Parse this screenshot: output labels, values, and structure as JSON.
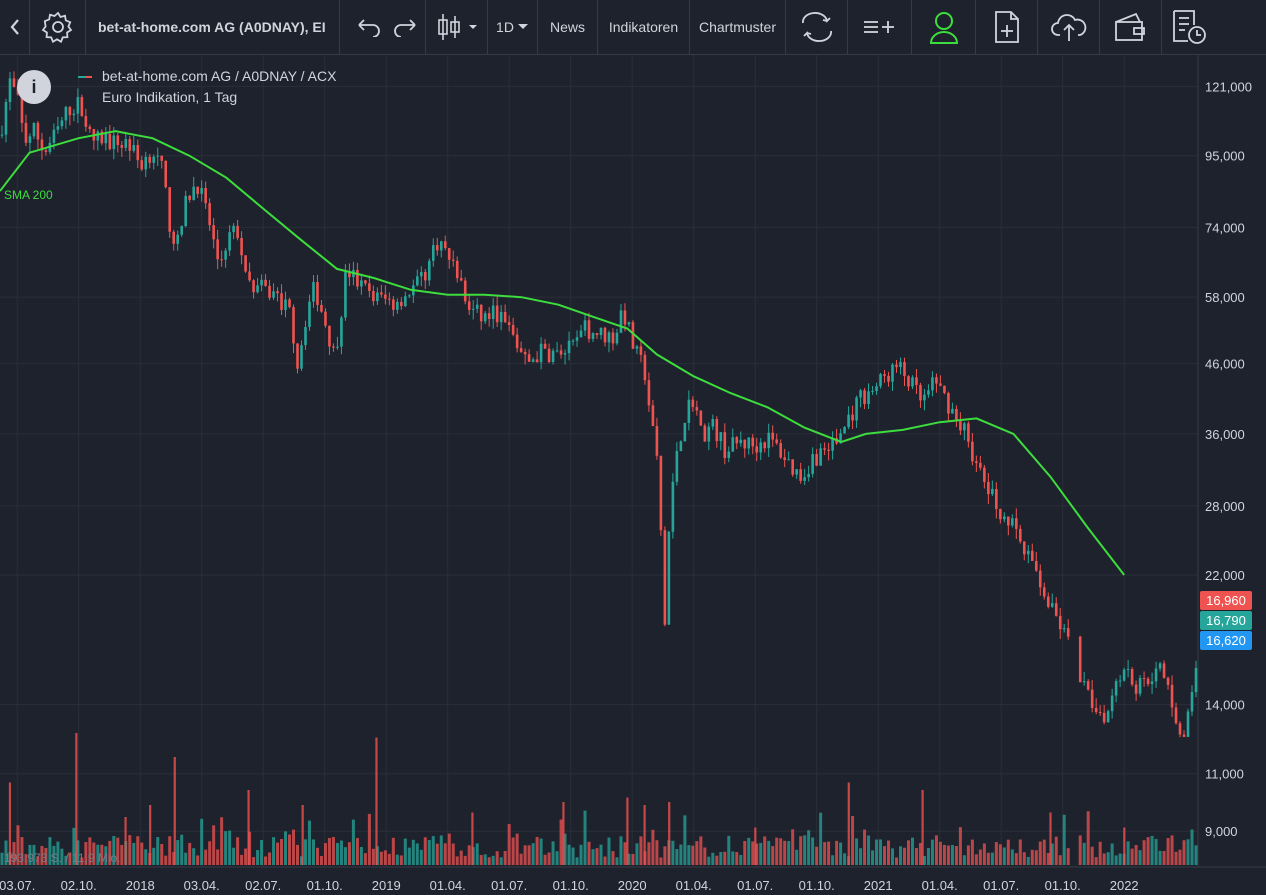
{
  "toolbar": {
    "symbol": "bet-at-home.com AG (A0DNAY), EI",
    "interval": "1D",
    "news": "News",
    "indicators": "Indikatoren",
    "patterns": "Chartmuster"
  },
  "icons": {
    "back": "chevron-left-icon",
    "settings": "gear-icon",
    "undo": "undo-icon",
    "redo": "redo-icon",
    "chart_type": "candlestick-icon",
    "compare": "swap-arrows-icon",
    "add_indicator": "list-plus-icon",
    "user": "user-icon",
    "new_doc": "file-plus-icon",
    "cloud": "cloud-upload-icon",
    "wallet": "wallet-icon",
    "report": "report-clock-icon"
  },
  "colors": {
    "background": "#1e222d",
    "grid": "#2a2e39",
    "up": "#26a69a",
    "down": "#ef5350",
    "sma": "#3cdd3c",
    "user_accent": "#3cdd3c"
  },
  "chart_data": {
    "type": "candlestick",
    "title": "bet-at-home.com AG / A0DNAY / ACX",
    "subtitle": "Euro Indikation, 1 Tag",
    "indicator_label": "SMA 200",
    "volume_label": "193.973 S. / 11,9 Mio.",
    "y_scale": "log",
    "ylim": [
      8000,
      135000
    ],
    "y_ticks": [
      121000,
      95000,
      74000,
      58000,
      46000,
      36000,
      28000,
      22000,
      14000,
      11000,
      9000
    ],
    "y_tick_labels": [
      "121,000",
      "95,000",
      "74,000",
      "58,000",
      "46,000",
      "36,000",
      "28,000",
      "22,000",
      "14,000",
      "11,000",
      "9,000"
    ],
    "x_range": [
      2017.43,
      2022.3
    ],
    "x_ticks": [
      2017.5,
      2017.75,
      2018.0,
      2018.25,
      2018.5,
      2018.75,
      2019.0,
      2019.25,
      2019.5,
      2019.75,
      2020.0,
      2020.25,
      2020.5,
      2020.75,
      2021.0,
      2021.25,
      2021.5,
      2021.75,
      2022.0
    ],
    "x_tick_labels": [
      "03.07.",
      "02.10.",
      "2018",
      "03.04.",
      "02.07.",
      "01.10.",
      "2019",
      "01.04.",
      "01.07.",
      "01.10.",
      "2020",
      "01.04.",
      "01.07.",
      "01.10.",
      "2021",
      "01.04.",
      "01.07.",
      "01.10.",
      "2022"
    ],
    "price_path": [
      [
        2017.43,
        102000
      ],
      [
        2017.47,
        123000
      ],
      [
        2017.5,
        116000
      ],
      [
        2017.53,
        100000
      ],
      [
        2017.57,
        104000
      ],
      [
        2017.61,
        96000
      ],
      [
        2017.66,
        103000
      ],
      [
        2017.71,
        112000
      ],
      [
        2017.76,
        114000
      ],
      [
        2017.8,
        100000
      ],
      [
        2017.85,
        101000
      ],
      [
        2017.9,
        99000
      ],
      [
        2017.95,
        100000
      ],
      [
        2018.0,
        92000
      ],
      [
        2018.05,
        97000
      ],
      [
        2018.09,
        90000
      ],
      [
        2018.12,
        75000
      ],
      [
        2018.15,
        69000
      ],
      [
        2018.19,
        82000
      ],
      [
        2018.23,
        87000
      ],
      [
        2018.27,
        78000
      ],
      [
        2018.32,
        65000
      ],
      [
        2018.36,
        72000
      ],
      [
        2018.4,
        73000
      ],
      [
        2018.43,
        61000
      ],
      [
        2018.48,
        60000
      ],
      [
        2018.55,
        58500
      ],
      [
        2018.61,
        55000
      ],
      [
        2018.64,
        46000
      ],
      [
        2018.68,
        56000
      ],
      [
        2018.71,
        60000
      ],
      [
        2018.76,
        52000
      ],
      [
        2018.79,
        47000
      ],
      [
        2018.84,
        64000
      ],
      [
        2018.9,
        60000
      ],
      [
        2018.96,
        58000
      ],
      [
        2019.03,
        57000
      ],
      [
        2019.09,
        59000
      ],
      [
        2019.15,
        62000
      ],
      [
        2019.21,
        71000
      ],
      [
        2019.25,
        67000
      ],
      [
        2019.29,
        63000
      ],
      [
        2019.33,
        56000
      ],
      [
        2019.39,
        54000
      ],
      [
        2019.45,
        55000
      ],
      [
        2019.51,
        51000
      ],
      [
        2019.57,
        46000
      ],
      [
        2019.63,
        48000
      ],
      [
        2019.69,
        47500
      ],
      [
        2019.76,
        48500
      ],
      [
        2019.81,
        52000
      ],
      [
        2019.87,
        51000
      ],
      [
        2019.93,
        50500
      ],
      [
        2019.96,
        56000
      ],
      [
        2020.01,
        48000
      ],
      [
        2020.05,
        45000
      ],
      [
        2020.08,
        37000
      ],
      [
        2020.11,
        31000
      ],
      [
        2020.13,
        17500
      ],
      [
        2020.15,
        26000
      ],
      [
        2020.18,
        34000
      ],
      [
        2020.22,
        39000
      ],
      [
        2020.25,
        41000
      ],
      [
        2020.28,
        36000
      ],
      [
        2020.33,
        37000
      ],
      [
        2020.38,
        34000
      ],
      [
        2020.44,
        35000
      ],
      [
        2020.5,
        34500
      ],
      [
        2020.55,
        35500
      ],
      [
        2020.6,
        34000
      ],
      [
        2020.65,
        32000
      ],
      [
        2020.69,
        31000
      ],
      [
        2020.73,
        33000
      ],
      [
        2020.78,
        34000
      ],
      [
        2020.83,
        35000
      ],
      [
        2020.88,
        38000
      ],
      [
        2020.93,
        41000
      ],
      [
        2020.98,
        42000
      ],
      [
        2021.03,
        44000
      ],
      [
        2021.08,
        45500
      ],
      [
        2021.13,
        43000
      ],
      [
        2021.18,
        40000
      ],
      [
        2021.23,
        43000
      ],
      [
        2021.27,
        41000
      ],
      [
        2021.31,
        38500
      ],
      [
        2021.36,
        36000
      ],
      [
        2021.4,
        32000
      ],
      [
        2021.44,
        30000
      ],
      [
        2021.48,
        28000
      ],
      [
        2021.52,
        27000
      ],
      [
        2021.56,
        25500
      ],
      [
        2021.6,
        23500
      ],
      [
        2021.64,
        22500
      ],
      [
        2021.7,
        19500
      ],
      [
        2021.74,
        18500
      ],
      [
        2021.78,
        17000
      ],
      [
        2021.81,
        15500
      ],
      [
        2021.85,
        14500
      ],
      [
        2021.89,
        13800
      ],
      [
        2021.93,
        13500
      ],
      [
        2021.97,
        15600
      ],
      [
        2022.01,
        16000
      ],
      [
        2022.05,
        14800
      ],
      [
        2022.1,
        15500
      ],
      [
        2022.15,
        15800
      ],
      [
        2022.2,
        14000
      ],
      [
        2022.24,
        12000
      ],
      [
        2022.27,
        14500
      ],
      [
        2022.3,
        16790
      ]
    ],
    "sma_200": [
      [
        2017.43,
        84000
      ],
      [
        2017.55,
        96000
      ],
      [
        2017.75,
        101000
      ],
      [
        2017.9,
        103500
      ],
      [
        2018.05,
        101000
      ],
      [
        2018.2,
        95000
      ],
      [
        2018.35,
        88000
      ],
      [
        2018.5,
        79000
      ],
      [
        2018.65,
        71000
      ],
      [
        2018.8,
        64000
      ],
      [
        2018.95,
        62000
      ],
      [
        2019.1,
        59500
      ],
      [
        2019.25,
        58500
      ],
      [
        2019.4,
        58500
      ],
      [
        2019.55,
        58000
      ],
      [
        2019.7,
        56500
      ],
      [
        2019.85,
        54000
      ],
      [
        2019.98,
        52000
      ],
      [
        2020.1,
        47500
      ],
      [
        2020.25,
        44000
      ],
      [
        2020.4,
        41500
      ],
      [
        2020.55,
        39500
      ],
      [
        2020.7,
        36800
      ],
      [
        2020.85,
        35000
      ],
      [
        2020.95,
        36000
      ],
      [
        2021.1,
        36500
      ],
      [
        2021.25,
        37500
      ],
      [
        2021.4,
        38000
      ],
      [
        2021.55,
        36000
      ],
      [
        2021.7,
        31000
      ],
      [
        2021.85,
        26000
      ],
      [
        2022.0,
        22000
      ]
    ],
    "volume_spikes": [
      [
        2017.47,
        0.55
      ],
      [
        2017.74,
        0.88
      ],
      [
        2017.94,
        0.32
      ],
      [
        2018.04,
        0.4
      ],
      [
        2018.14,
        0.72
      ],
      [
        2018.44,
        0.5
      ],
      [
        2018.66,
        0.4
      ],
      [
        2018.96,
        0.85
      ],
      [
        2019.35,
        0.35
      ],
      [
        2019.72,
        0.42
      ],
      [
        2019.98,
        0.45
      ],
      [
        2020.05,
        0.4
      ],
      [
        2020.15,
        0.42
      ],
      [
        2020.5,
        0.25
      ],
      [
        2020.88,
        0.55
      ],
      [
        2021.18,
        0.5
      ],
      [
        2021.7,
        0.35
      ],
      [
        2022.0,
        0.25
      ]
    ],
    "last_prices": {
      "high": "16,960",
      "last": "16,790",
      "low": "16,620"
    }
  }
}
